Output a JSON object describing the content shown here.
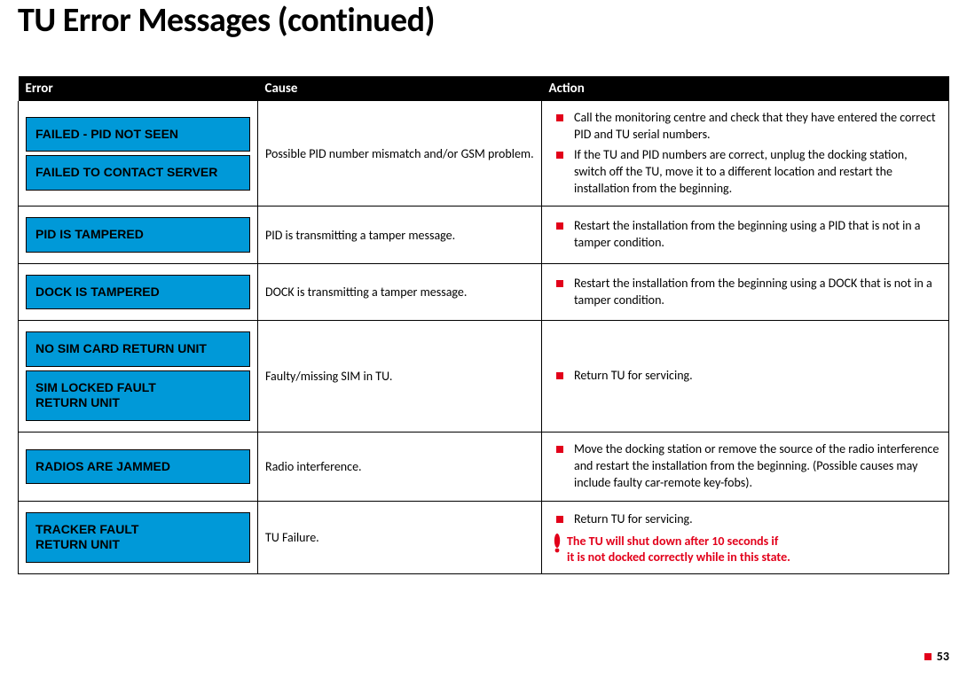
{
  "title": "TU Error Messages (continued)",
  "headers": {
    "error": "Error",
    "cause": "Cause",
    "action": "Action"
  },
  "colors": {
    "accent_red": "#e2001a",
    "card_blue": "#0099d8",
    "header_bg": "#000000",
    "header_fg": "#ffffff",
    "body_bg": "#ffffff"
  },
  "rows": {
    "r1": {
      "errors": [
        "FAILED - PID NOT SEEN",
        "FAILED TO CONTACT SERVER"
      ],
      "cause": "Possible PID number mismatch and/or GSM problem.",
      "actions": [
        "Call the monitoring centre and check that they have entered the correct PID and TU serial numbers.",
        "If the TU and PID numbers are correct, unplug the docking station, switch off the TU, move it to a different location and restart the installation from the beginning."
      ]
    },
    "r2": {
      "errors": [
        "PID IS TAMPERED"
      ],
      "cause": "PID is transmitting a tamper message.",
      "actions": [
        "Restart the installation from the beginning using a PID that is not in a tamper condition."
      ]
    },
    "r3": {
      "errors": [
        "DOCK IS TAMPERED"
      ],
      "cause": "DOCK is transmitting a tamper message.",
      "actions": [
        "Restart the installation from the beginning using a DOCK that is not in a tamper condition."
      ]
    },
    "r4": {
      "errors": [
        "NO SIM CARD RETURN UNIT",
        "SIM LOCKED FAULT\nRETURN UNIT"
      ],
      "cause": "Faulty/missing SIM in TU.",
      "actions": [
        "Return TU for servicing."
      ]
    },
    "r5": {
      "errors": [
        "RADIOS ARE JAMMED"
      ],
      "cause": "Radio interference.",
      "actions": [
        "Move the docking station or remove the source of the radio interference and restart the installation from the beginning. (Possible causes may include faulty car-remote key-fobs)."
      ]
    },
    "r6": {
      "errors": [
        "TRACKER FAULT\nRETURN UNIT"
      ],
      "cause": "TU Failure.",
      "actions": [
        "Return TU for servicing."
      ],
      "warning": "The TU will shut down after 10 seconds if\nit is not docked correctly while in this state."
    }
  },
  "page_number": "53"
}
